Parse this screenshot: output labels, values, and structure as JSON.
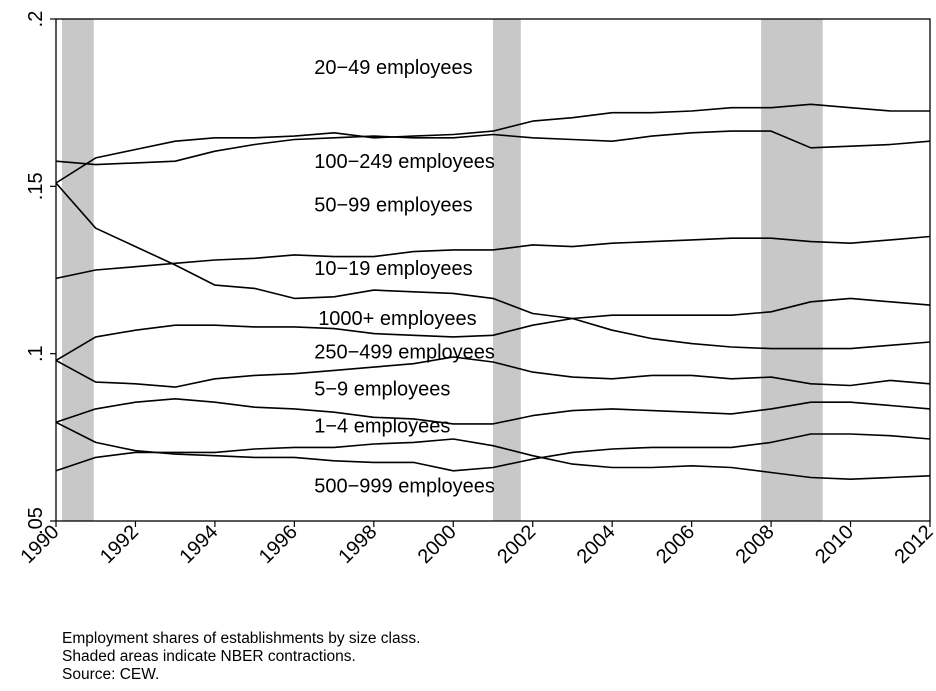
{
  "chart_data": {
    "type": "line",
    "xlim": [
      1990,
      2012
    ],
    "ylim": [
      0.05,
      0.2
    ],
    "x_ticks": [
      "1990",
      "1992",
      "1994",
      "1996",
      "1998",
      "2000",
      "2002",
      "2004",
      "2006",
      "2008",
      "2010",
      "2012"
    ],
    "y_ticks": [
      ".05",
      ".1",
      ".15",
      ".2"
    ],
    "grid": false,
    "recessions": [
      [
        1990.15,
        1990.95
      ],
      [
        2001.0,
        2001.7
      ],
      [
        2007.75,
        2009.3
      ]
    ],
    "x": [
      1990,
      1991,
      1992,
      1993,
      1994,
      1995,
      1996,
      1997,
      1998,
      1999,
      2000,
      2001,
      2002,
      2003,
      2004,
      2005,
      2006,
      2007,
      2008,
      2009,
      2010,
      2011,
      2012
    ],
    "series": [
      {
        "name": "20−49 employees",
        "label_x": 1996.5,
        "label_y": 0.1835,
        "values": [
          0.151,
          0.1585,
          0.161,
          0.1635,
          0.1645,
          0.1645,
          0.165,
          0.166,
          0.1645,
          0.165,
          0.1655,
          0.1665,
          0.1695,
          0.1705,
          0.172,
          0.172,
          0.1725,
          0.1735,
          0.1735,
          0.1745,
          0.1735,
          0.1725,
          0.1725
        ]
      },
      {
        "name": "100−249 employees",
        "label_x": 1996.5,
        "label_y": 0.1555,
        "values": [
          0.1575,
          0.1565,
          0.157,
          0.1575,
          0.1605,
          0.1625,
          0.164,
          0.1645,
          0.165,
          0.1645,
          0.1645,
          0.1655,
          0.1645,
          0.164,
          0.1635,
          0.165,
          0.166,
          0.1665,
          0.1665,
          0.1615,
          0.162,
          0.1625,
          0.1635
        ]
      },
      {
        "name": "50−99 employees",
        "label_x": 1996.5,
        "label_y": 0.1425,
        "values": [
          0.1225,
          0.125,
          0.126,
          0.127,
          0.128,
          0.1285,
          0.1295,
          0.129,
          0.129,
          0.1305,
          0.131,
          0.131,
          0.1325,
          0.132,
          0.133,
          0.1335,
          0.134,
          0.1345,
          0.1345,
          0.1335,
          0.133,
          0.134,
          0.135
        ]
      },
      {
        "name": "10−19 employees",
        "label_x": 1996.5,
        "label_y": 0.1235,
        "values": [
          0.151,
          0.1375,
          0.132,
          0.1265,
          0.1205,
          0.1195,
          0.1165,
          0.117,
          0.119,
          0.1185,
          0.118,
          0.1165,
          0.112,
          0.1105,
          0.107,
          0.1045,
          0.103,
          0.102,
          0.1015,
          0.1015,
          0.1015,
          0.1025,
          0.1035
        ]
      },
      {
        "name": "1000+ employees",
        "label_x": 1996.6,
        "label_y": 0.1085,
        "values": [
          0.098,
          0.105,
          0.107,
          0.1085,
          0.1085,
          0.108,
          0.108,
          0.1075,
          0.106,
          0.1055,
          0.105,
          0.1055,
          0.1085,
          0.1105,
          0.1115,
          0.1115,
          0.1115,
          0.1115,
          0.1125,
          0.1155,
          0.1165,
          0.1155,
          0.1145
        ]
      },
      {
        "name": "250−499 employees",
        "label_x": 1996.5,
        "label_y": 0.0985,
        "values": [
          0.098,
          0.0915,
          0.091,
          0.09,
          0.0925,
          0.0935,
          0.094,
          0.095,
          0.096,
          0.097,
          0.099,
          0.0975,
          0.0945,
          0.093,
          0.0925,
          0.0935,
          0.0935,
          0.0925,
          0.093,
          0.091,
          0.0905,
          0.092,
          0.091
        ]
      },
      {
        "name": "5−9 employees",
        "label_x": 1996.5,
        "label_y": 0.0875,
        "values": [
          0.0795,
          0.0835,
          0.0855,
          0.0865,
          0.0855,
          0.084,
          0.0835,
          0.0825,
          0.081,
          0.0805,
          0.079,
          0.079,
          0.0815,
          0.083,
          0.0835,
          0.083,
          0.0825,
          0.082,
          0.0835,
          0.0855,
          0.0855,
          0.0845,
          0.0835
        ]
      },
      {
        "name": "1−4 employees",
        "label_x": 1996.5,
        "label_y": 0.0765,
        "values": [
          0.0795,
          0.0735,
          0.071,
          0.07,
          0.0695,
          0.069,
          0.069,
          0.068,
          0.0675,
          0.0675,
          0.065,
          0.066,
          0.0685,
          0.0705,
          0.0715,
          0.072,
          0.072,
          0.072,
          0.0735,
          0.076,
          0.076,
          0.0755,
          0.0745
        ]
      },
      {
        "name": "500−999 employees",
        "label_x": 1996.5,
        "label_y": 0.0585,
        "values": [
          0.065,
          0.069,
          0.0705,
          0.0705,
          0.0705,
          0.0715,
          0.072,
          0.072,
          0.073,
          0.0735,
          0.0745,
          0.0725,
          0.0695,
          0.067,
          0.066,
          0.066,
          0.0665,
          0.066,
          0.0645,
          0.063,
          0.0625,
          0.063,
          0.0635
        ]
      }
    ]
  },
  "notes": {
    "line1": "Employment shares of establishments by size class.",
    "line2": "Shaded areas indicate NBER contractions.",
    "line3": "Source: CEW."
  },
  "colors": {
    "line": "#000000",
    "recession_fill": "#c8c8c8",
    "background": "#ffffff"
  }
}
